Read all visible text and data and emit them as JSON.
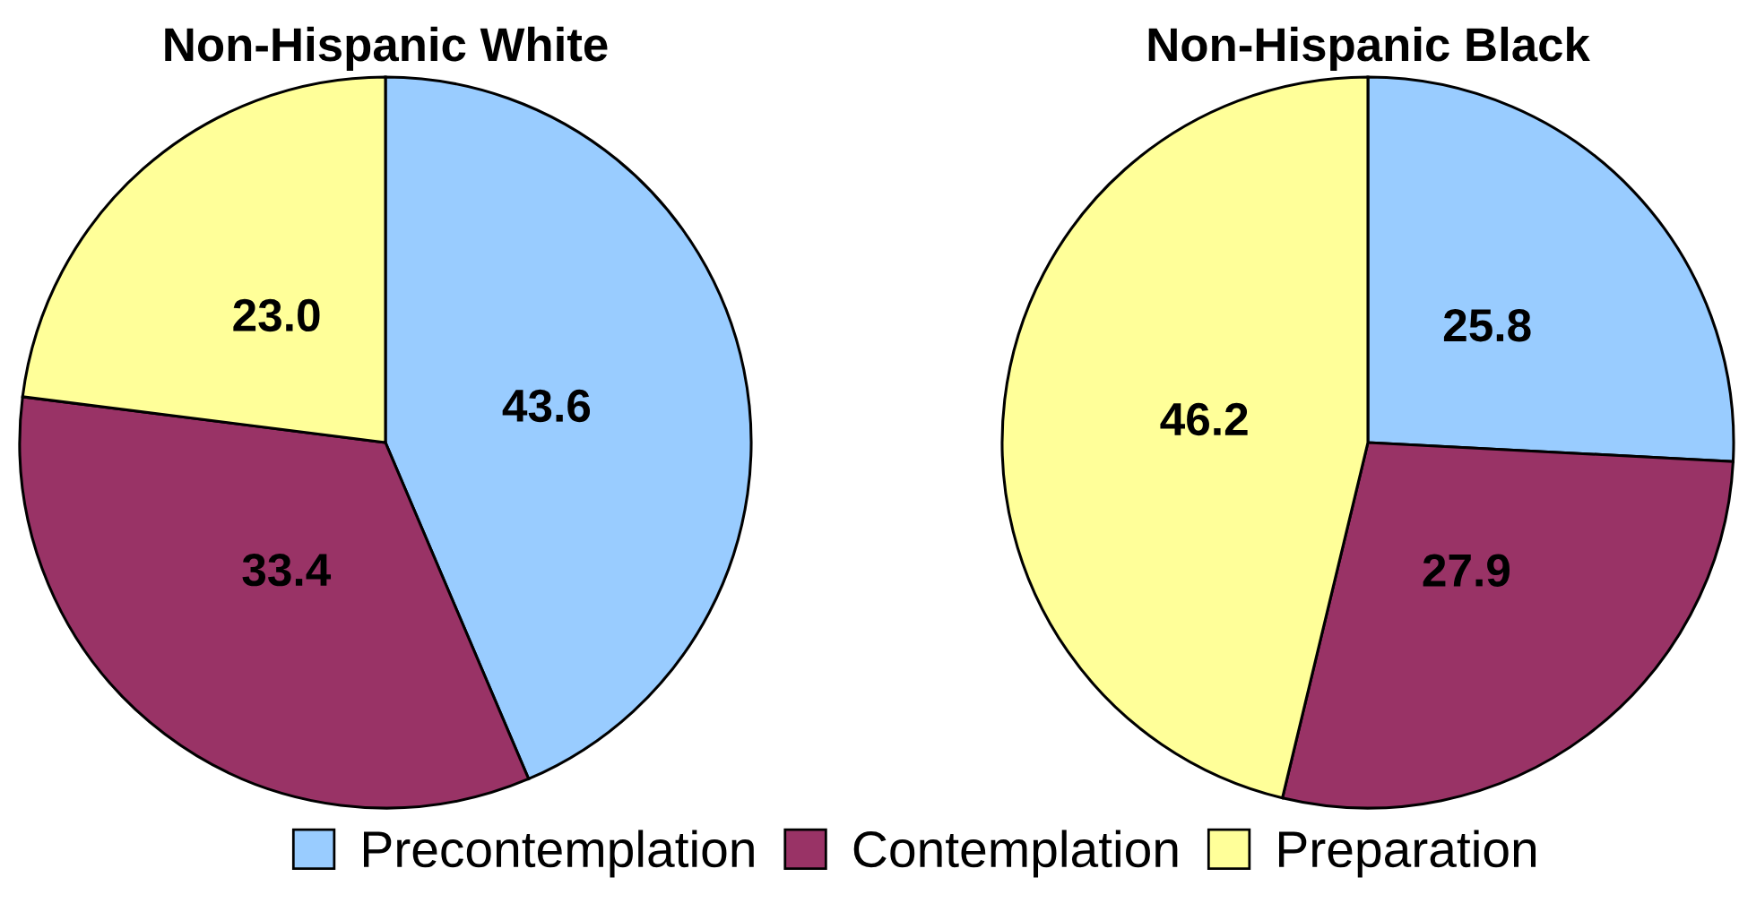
{
  "chart_data": {
    "type": "pie",
    "categories": [
      "Precontemplation",
      "Contemplation",
      "Preparation"
    ],
    "colors": [
      "#99ccff",
      "#993366",
      "#ffff99"
    ],
    "legend": "bottom",
    "series": [
      {
        "name": "Non-Hispanic White",
        "values": [
          43.6,
          33.4,
          23.0
        ],
        "value_labels": [
          "43.6",
          "33.4",
          "23.0"
        ]
      },
      {
        "name": "Non-Hispanic Black",
        "values": [
          25.8,
          27.9,
          46.2
        ],
        "value_labels": [
          "25.8",
          "27.9",
          "46.2"
        ]
      }
    ]
  }
}
